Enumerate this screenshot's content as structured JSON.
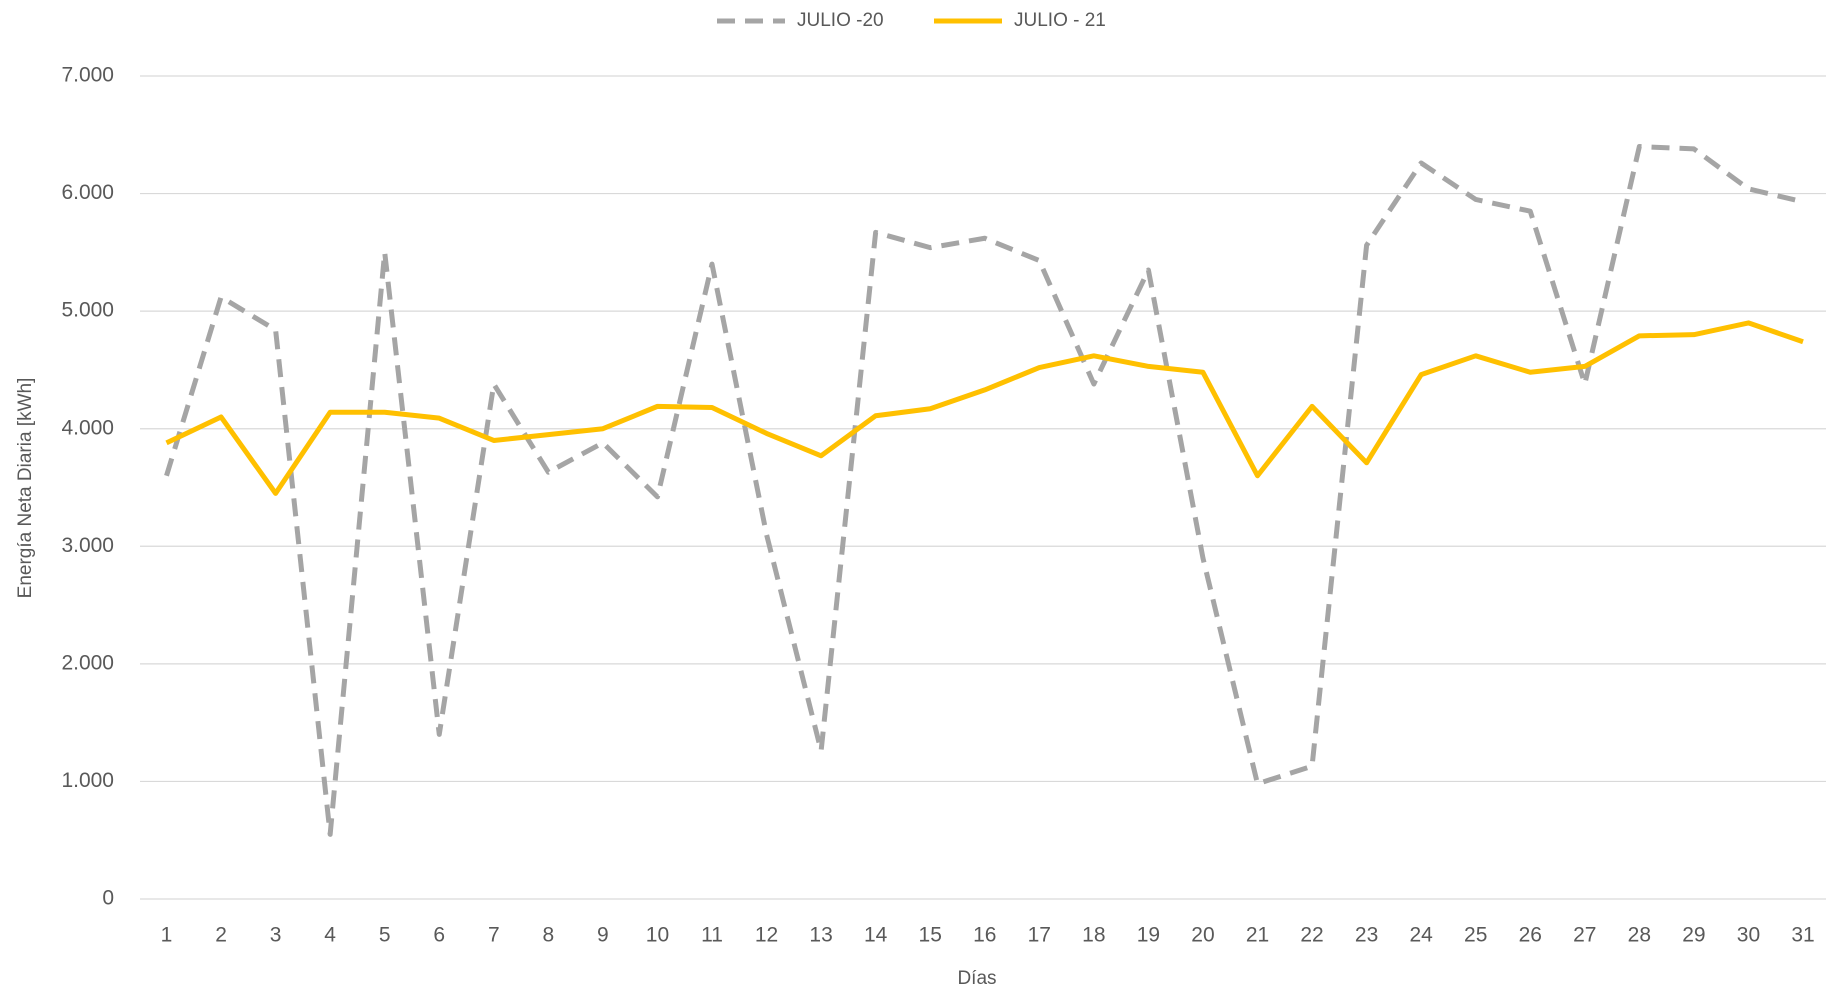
{
  "chart_data": {
    "type": "line",
    "xlabel": "Días",
    "ylabel": "Energía Neta Diaria [kWh]",
    "categories": [
      1,
      2,
      3,
      4,
      5,
      6,
      7,
      8,
      9,
      10,
      11,
      12,
      13,
      14,
      15,
      16,
      17,
      18,
      19,
      20,
      21,
      22,
      23,
      24,
      25,
      26,
      27,
      28,
      29,
      30,
      31
    ],
    "series": [
      {
        "name": "JULIO -20",
        "color": "#a5a5a5",
        "dashed": true,
        "values": [
          3600,
          5120,
          4840,
          550,
          5500,
          1400,
          4380,
          3630,
          3880,
          3420,
          5400,
          3100,
          1260,
          5670,
          5540,
          5620,
          5430,
          4380,
          5350,
          2900,
          980,
          1130,
          5560,
          6260,
          5950,
          5850,
          4380,
          6400,
          6380,
          6040,
          5930
        ]
      },
      {
        "name": "JULIO - 21",
        "color": "#ffc000",
        "dashed": false,
        "values": [
          3880,
          4100,
          3450,
          4140,
          4140,
          4090,
          3900,
          3950,
          4000,
          4190,
          4180,
          3960,
          3770,
          4110,
          4170,
          4330,
          4520,
          4620,
          4530,
          4480,
          3600,
          4190,
          3710,
          4460,
          4620,
          4480,
          4530,
          4790,
          4800,
          4900,
          4740
        ]
      }
    ],
    "ylim": [
      0,
      7000
    ],
    "yticks": [
      0,
      {
        "value": 1000,
        "label": "1.000"
      },
      {
        "value": 2000,
        "label": "2.000"
      },
      {
        "value": 3000,
        "label": "3.000"
      },
      {
        "value": 4000,
        "label": "4.000"
      },
      {
        "value": 5000,
        "label": "5.000"
      },
      {
        "value": 6000,
        "label": "6.000"
      },
      {
        "value": 7000,
        "label": "7.000"
      }
    ],
    "grid": true,
    "legend": "top"
  }
}
